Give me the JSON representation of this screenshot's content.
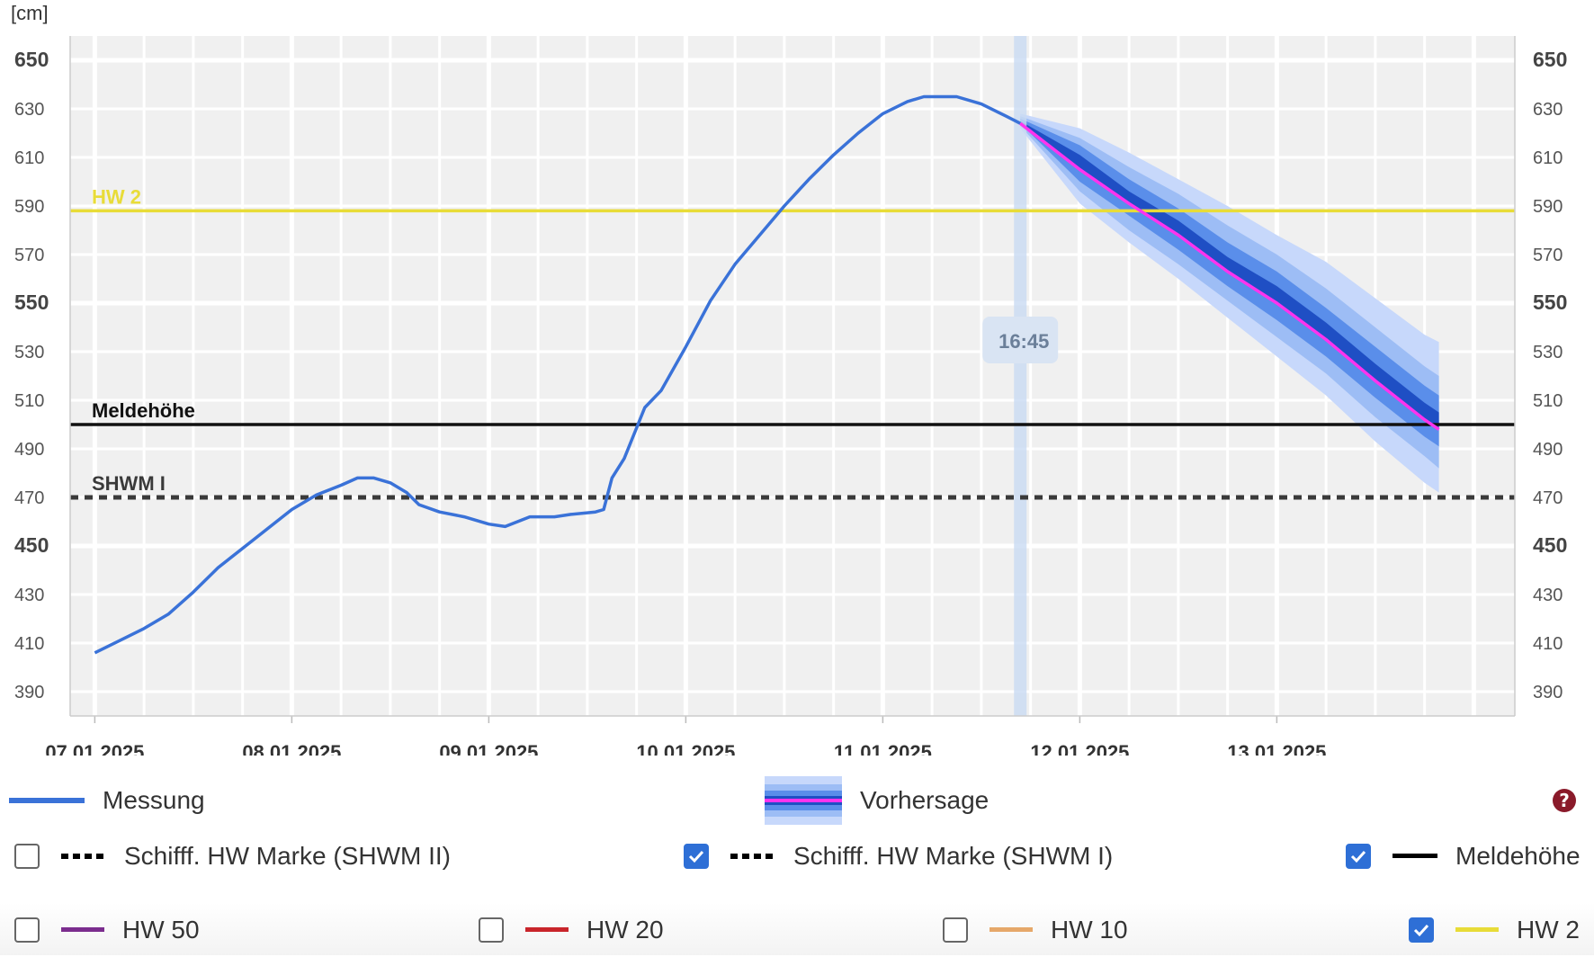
{
  "chart_data": {
    "type": "line",
    "unit_label": "[cm]",
    "ylim": [
      380,
      660
    ],
    "y_ticks": [
      390,
      410,
      430,
      450,
      470,
      490,
      510,
      530,
      550,
      570,
      590,
      610,
      630,
      650
    ],
    "y_ticks_bold": [
      450,
      550,
      650
    ],
    "x_start": "2025-01-06T21:00",
    "x_end": "2025-01-14T05:00",
    "x_tick_dates": [
      "07.01.2025",
      "08.01.2025",
      "09.01.2025",
      "10.01.2025",
      "11.01.2025",
      "12.01.2025",
      "13.01.2025"
    ],
    "now_label": "16:45",
    "now_time": "2025-01-11T16:45",
    "measurement": {
      "name": "Messung",
      "color": "#3a72d8",
      "points": [
        [
          "2025-01-07T00:00",
          406
        ],
        [
          "2025-01-07T03:00",
          411
        ],
        [
          "2025-01-07T06:00",
          416
        ],
        [
          "2025-01-07T09:00",
          422
        ],
        [
          "2025-01-07T12:00",
          431
        ],
        [
          "2025-01-07T15:00",
          441
        ],
        [
          "2025-01-07T18:00",
          449
        ],
        [
          "2025-01-07T21:00",
          457
        ],
        [
          "2025-01-08T00:00",
          465
        ],
        [
          "2025-01-08T03:00",
          471
        ],
        [
          "2025-01-08T06:00",
          475
        ],
        [
          "2025-01-08T08:00",
          478
        ],
        [
          "2025-01-08T10:00",
          478
        ],
        [
          "2025-01-08T12:00",
          476
        ],
        [
          "2025-01-08T14:00",
          472
        ],
        [
          "2025-01-08T15:30",
          467
        ],
        [
          "2025-01-08T18:00",
          464
        ],
        [
          "2025-01-08T21:00",
          462
        ],
        [
          "2025-01-09T00:00",
          459
        ],
        [
          "2025-01-09T02:00",
          458
        ],
        [
          "2025-01-09T05:00",
          462
        ],
        [
          "2025-01-09T08:00",
          462
        ],
        [
          "2025-01-09T10:00",
          463
        ],
        [
          "2025-01-09T13:00",
          464
        ],
        [
          "2025-01-09T14:00",
          465
        ],
        [
          "2025-01-09T15:00",
          478
        ],
        [
          "2025-01-09T16:30",
          486
        ],
        [
          "2025-01-09T19:00",
          507
        ],
        [
          "2025-01-09T21:00",
          514
        ],
        [
          "2025-01-10T00:00",
          532
        ],
        [
          "2025-01-10T03:00",
          551
        ],
        [
          "2025-01-10T06:00",
          566
        ],
        [
          "2025-01-10T09:00",
          578
        ],
        [
          "2025-01-10T12:00",
          590
        ],
        [
          "2025-01-10T15:00",
          601
        ],
        [
          "2025-01-10T18:00",
          611
        ],
        [
          "2025-01-10T21:00",
          620
        ],
        [
          "2025-01-11T00:00",
          628
        ],
        [
          "2025-01-11T03:00",
          633
        ],
        [
          "2025-01-11T05:00",
          635
        ],
        [
          "2025-01-11T09:00",
          635
        ],
        [
          "2025-01-11T12:00",
          632
        ],
        [
          "2025-01-11T15:00",
          627
        ],
        [
          "2025-01-11T16:45",
          624
        ]
      ]
    },
    "forecast": {
      "name": "Vorhersage",
      "color": "#ff33ee",
      "band_colors": [
        "#c7d8fb",
        "#9dbdf5",
        "#5a8eea",
        "#1f4fc4"
      ],
      "points": [
        [
          "2025-01-11T16:45",
          624,
          625,
          624,
          626,
          623,
          627,
          622,
          628,
          621
        ],
        [
          "2025-01-12T00:00",
          605,
          611,
          600,
          615,
          596,
          618,
          591,
          622,
          586
        ],
        [
          "2025-01-12T06:00",
          591,
          596,
          586,
          601,
          580,
          606,
          575,
          612,
          569
        ],
        [
          "2025-01-12T12:00",
          578,
          584,
          572,
          589,
          566,
          595,
          560,
          601,
          554
        ],
        [
          "2025-01-12T18:00",
          563,
          569,
          557,
          575,
          551,
          582,
          544,
          590,
          538
        ],
        [
          "2025-01-13T00:00",
          550,
          557,
          543,
          563,
          536,
          570,
          528,
          578,
          520
        ],
        [
          "2025-01-13T06:00",
          535,
          542,
          528,
          548,
          521,
          556,
          512,
          567,
          503
        ],
        [
          "2025-01-13T12:00",
          518,
          525,
          511,
          532,
          503,
          540,
          493,
          552,
          484
        ],
        [
          "2025-01-13T18:00",
          502,
          509,
          495,
          516,
          487,
          524,
          476,
          537,
          467
        ],
        [
          "2025-01-13T19:45",
          498,
          505,
          491,
          512,
          482,
          520,
          472,
          534,
          466
        ]
      ]
    },
    "threshold_lines": [
      {
        "name": "HW 2",
        "value": 588,
        "color": "#e8dc38",
        "style": "solid"
      },
      {
        "name": "Meldehöhe",
        "value": 500,
        "color": "#111111",
        "style": "solid"
      },
      {
        "name": "SHWM I",
        "value": 470,
        "color": "#3a3a3a",
        "style": "dotted"
      }
    ]
  },
  "legend": {
    "measurement_label": "Messung",
    "forecast_label": "Vorhersage",
    "help_icon": "question-circle-icon",
    "rows": [
      [
        {
          "label": "Schifff. HW Marke (SHWM II)",
          "checked": false,
          "color": "#000000",
          "style": "dotted"
        },
        {
          "label": "Schifff. HW Marke (SHWM I)",
          "checked": true,
          "color": "#000000",
          "style": "dotted"
        },
        {
          "label": "Meldehöhe",
          "checked": true,
          "color": "#000000",
          "style": "solid"
        }
      ],
      [
        {
          "label": "HW 50",
          "checked": false,
          "color": "#7b2d8e",
          "style": "solid"
        },
        {
          "label": "HW 20",
          "checked": false,
          "color": "#c9252b",
          "style": "solid"
        },
        {
          "label": "HW 10",
          "checked": false,
          "color": "#e6a86a",
          "style": "solid"
        },
        {
          "label": "HW 2",
          "checked": true,
          "color": "#e8dc38",
          "style": "solid"
        }
      ]
    ]
  }
}
